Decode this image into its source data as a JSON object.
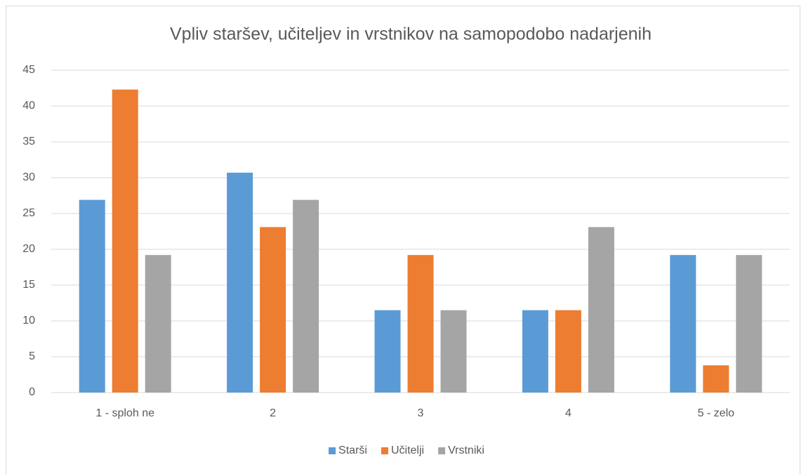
{
  "chart_data": {
    "type": "bar",
    "title": "Vpliv staršev, učiteljev in vrstnikov na samopodobo nadarjenih",
    "categories": [
      "1 - sploh ne",
      "2",
      "3",
      "4",
      "5 - zelo"
    ],
    "series": [
      {
        "name": "Starši",
        "color": "#5b9bd5",
        "values": [
          26.9,
          30.7,
          11.5,
          11.5,
          19.2
        ]
      },
      {
        "name": "Učitelji",
        "color": "#ed7d31",
        "values": [
          42.3,
          23.1,
          19.2,
          11.5,
          3.8
        ]
      },
      {
        "name": "Vrstniki",
        "color": "#a5a5a5",
        "values": [
          19.2,
          26.9,
          11.5,
          23.1,
          19.2
        ]
      }
    ],
    "ylim": [
      0,
      45
    ],
    "yticks": [
      0,
      5,
      10,
      15,
      20,
      25,
      30,
      35,
      40,
      45
    ],
    "grid": true,
    "legend": "bottom"
  }
}
